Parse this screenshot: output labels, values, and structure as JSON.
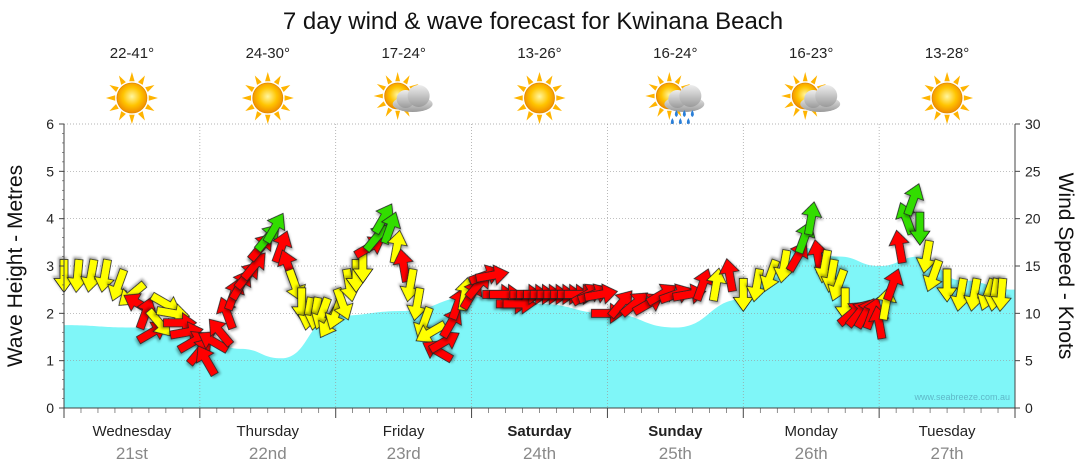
{
  "chart_data": {
    "type": "area",
    "title": "7 day wind & wave forecast for Kwinana Beach",
    "ylabel_left": "Wave Height - Metres",
    "ylabel_right": "Wind Speed - Knots",
    "ylim_left": [
      0,
      6
    ],
    "ylim_right": [
      0,
      30
    ],
    "yticks_left": [
      "0",
      "1",
      "2",
      "3",
      "4",
      "5",
      "6"
    ],
    "yticks_right": [
      "0",
      "5",
      "10",
      "15",
      "20",
      "25",
      "30"
    ],
    "watermark": "www.seabreeze.com.au",
    "days": [
      {
        "name": "Wednesday",
        "date": "21st",
        "temp": "22-41°",
        "weather": "sunny",
        "bold": false
      },
      {
        "name": "Thursday",
        "date": "22nd",
        "temp": "24-30°",
        "weather": "sunny",
        "bold": false
      },
      {
        "name": "Friday",
        "date": "23rd",
        "temp": "17-24°",
        "weather": "sun-cloud",
        "bold": false
      },
      {
        "name": "Saturday",
        "date": "24th",
        "temp": "13-26°",
        "weather": "sunny",
        "bold": true
      },
      {
        "name": "Sunday",
        "date": "25th",
        "temp": "16-24°",
        "weather": "sun-rain",
        "bold": true
      },
      {
        "name": "Monday",
        "date": "26th",
        "temp": "16-23°",
        "weather": "sun-cloud",
        "bold": false
      },
      {
        "name": "Tuesday",
        "date": "27th",
        "temp": "13-28°",
        "weather": "sunny",
        "bold": false
      }
    ],
    "wave_series": {
      "name": "Wave Height (m)",
      "x_day": [
        0,
        0.5,
        1,
        1.3,
        1.6,
        2,
        2.5,
        3,
        3.5,
        4,
        4.5,
        5,
        5.2,
        5.4,
        5.7,
        6,
        6.3,
        6.6,
        7
      ],
      "values": [
        1.75,
        1.7,
        1.5,
        1.25,
        1.05,
        1.95,
        2.05,
        2.35,
        2.2,
        2.0,
        1.7,
        2.3,
        2.8,
        3.4,
        3.2,
        3.0,
        3.2,
        2.7,
        2.5
      ]
    },
    "wind_series": {
      "name": "Wind Speed (knots)",
      "x_day": [
        0,
        0.1,
        0.2,
        0.3,
        0.4,
        0.5,
        0.55,
        0.6,
        0.65,
        0.7,
        0.75,
        0.8,
        0.85,
        0.9,
        0.95,
        1.0,
        1.05,
        1.1,
        1.15,
        1.2,
        1.25,
        1.3,
        1.35,
        1.4,
        1.45,
        1.5,
        1.55,
        1.6,
        1.65,
        1.7,
        1.75,
        1.8,
        1.85,
        1.9,
        1.95,
        2.0,
        2.05,
        2.1,
        2.15,
        2.2,
        2.25,
        2.3,
        2.35,
        2.4,
        2.45,
        2.5,
        2.55,
        2.6,
        2.65,
        2.7,
        2.75,
        2.8,
        2.85,
        2.9,
        2.95,
        3.0,
        3.05,
        3.1,
        3.15,
        3.2,
        3.25,
        3.3,
        3.35,
        3.4,
        3.45,
        3.5,
        3.55,
        3.6,
        3.65,
        3.7,
        3.75,
        3.8,
        3.85,
        3.9,
        3.95,
        4.0,
        4.1,
        4.2,
        4.3,
        4.4,
        4.5,
        4.6,
        4.7,
        4.8,
        4.9,
        5.0,
        5.1,
        5.2,
        5.3,
        5.4,
        5.45,
        5.5,
        5.55,
        5.6,
        5.65,
        5.7,
        5.75,
        5.8,
        5.85,
        5.9,
        5.95,
        6.0,
        6.05,
        6.1,
        6.15,
        6.2,
        6.25,
        6.3,
        6.35,
        6.4,
        6.5,
        6.6,
        6.7,
        6.8,
        6.85,
        6.9
      ],
      "values": [
        14,
        14,
        14,
        14,
        13,
        12,
        11,
        10,
        8,
        9,
        11,
        10,
        9,
        8,
        7,
        6,
        5,
        7,
        8,
        10,
        12,
        13,
        14,
        15,
        17,
        18,
        19,
        17,
        15,
        13,
        11,
        10,
        10,
        10,
        9,
        10,
        11,
        13,
        14,
        15,
        17,
        18,
        20,
        19,
        17,
        15,
        13,
        11,
        9,
        8,
        6,
        7,
        9,
        11,
        12,
        12,
        13,
        14,
        14,
        12,
        12,
        11,
        11,
        12,
        12,
        12,
        12,
        12,
        12,
        12,
        12,
        12,
        12,
        12,
        12,
        10,
        11,
        11,
        11,
        12,
        12,
        12,
        13,
        13,
        14,
        12,
        13,
        14,
        15,
        16,
        18,
        20,
        16,
        15,
        14,
        13,
        11,
        10,
        10,
        10,
        10,
        9,
        11,
        13,
        17,
        20,
        22,
        19,
        16,
        14,
        13,
        12,
        12,
        12,
        12,
        12
      ],
      "direction_deg": [
        180,
        185,
        190,
        190,
        200,
        230,
        300,
        20,
        60,
        140,
        120,
        100,
        90,
        80,
        60,
        40,
        330,
        300,
        320,
        340,
        20,
        30,
        40,
        40,
        40,
        40,
        30,
        20,
        340,
        160,
        180,
        190,
        190,
        200,
        210,
        200,
        160,
        170,
        180,
        180,
        60,
        40,
        30,
        20,
        10,
        350,
        190,
        190,
        200,
        240,
        300,
        60,
        30,
        20,
        10,
        30,
        40,
        70,
        80,
        90,
        90,
        90,
        90,
        90,
        90,
        90,
        90,
        90,
        90,
        90,
        90,
        90,
        60,
        70,
        80,
        90,
        40,
        50,
        60,
        60,
        70,
        80,
        20,
        10,
        350,
        180,
        190,
        200,
        190,
        30,
        20,
        10,
        350,
        190,
        190,
        200,
        180,
        50,
        40,
        30,
        20,
        350,
        10,
        20,
        350,
        340,
        20,
        180,
        190,
        200,
        180,
        190,
        190,
        200,
        190,
        185
      ],
      "colour_rule": "red when wind is offshore-ish, yellow moderate, green strongest",
      "colours": [
        "#ffff00",
        "#ff0000",
        "#33dd00"
      ]
    },
    "colors": {
      "wave_fill": "#7ff6f8",
      "wave_edge": "#7ff6f8",
      "grid": "#9a9a9a",
      "axis": "#444444"
    }
  }
}
